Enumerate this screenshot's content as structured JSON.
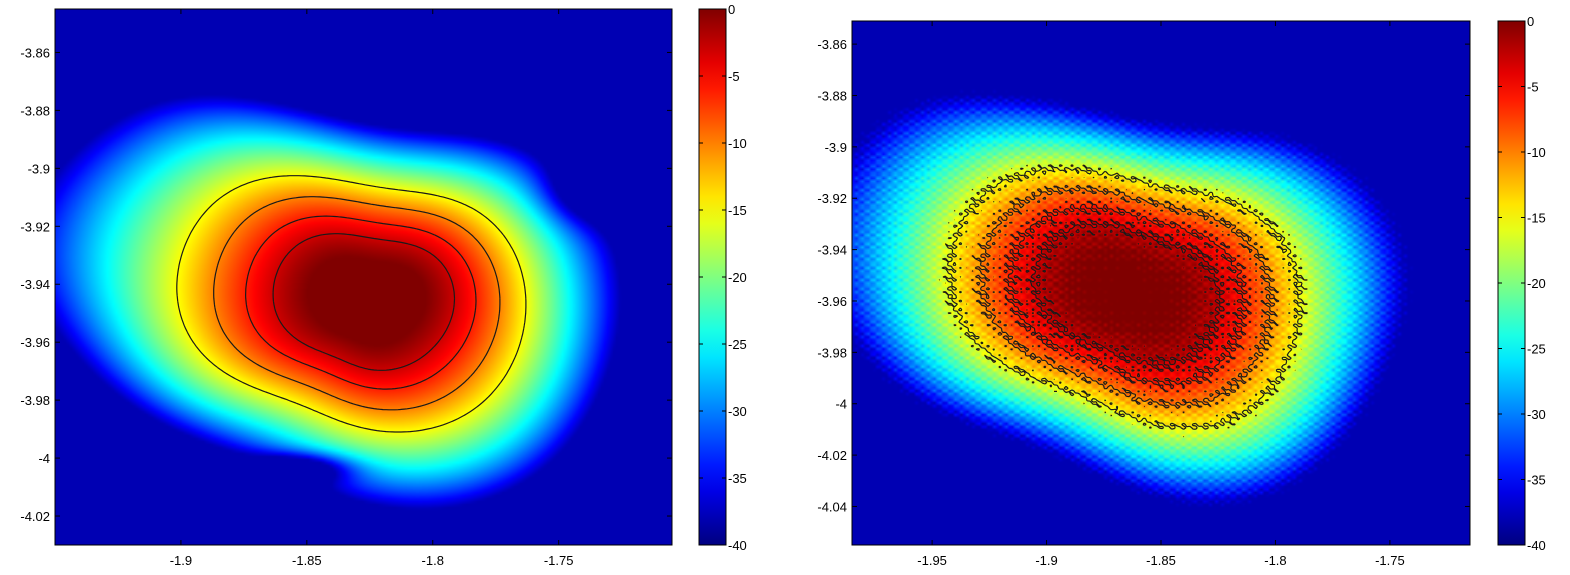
{
  "chart_data": [
    {
      "type": "heatmap",
      "contour_levels": [
        -3,
        -6,
        -10,
        -15
      ],
      "peak": {
        "x": -1.825,
        "y": -3.95
      },
      "xlim": [
        -1.95,
        -1.705
      ],
      "ylim": [
        -4.03,
        -3.845
      ],
      "xticks": [
        -1.9,
        -1.85,
        -1.8,
        -1.75
      ],
      "xtick_labels": [
        "-1.9",
        "-1.85",
        "-1.8",
        "-1.75"
      ],
      "yticks": [
        -3.86,
        -3.88,
        -3.9,
        -3.92,
        -3.94,
        -3.96,
        -3.98,
        -4,
        -4.02
      ],
      "ytick_labels": [
        "-3.86",
        "-3.88",
        "-3.9",
        "-3.92",
        "-3.94",
        "-3.96",
        "-3.98",
        "-4",
        "-4.02"
      ],
      "colorbar": {
        "range": [
          -40,
          0
        ],
        "ticks": [
          0,
          -5,
          -10,
          -15,
          -20,
          -25,
          -30,
          -35,
          -40
        ],
        "tick_labels": [
          "0",
          "-5",
          "-10",
          "-15",
          "-20",
          "-25",
          "-30",
          "-35",
          "-40"
        ],
        "colormap": "jet"
      },
      "smooth": true
    },
    {
      "type": "heatmap",
      "contour_levels": [
        -3,
        -6,
        -10,
        -15
      ],
      "peak": {
        "x": -1.855,
        "y": -3.962
      },
      "xlim": [
        -1.985,
        -1.715
      ],
      "ylim": [
        -4.055,
        -3.851
      ],
      "xticks": [
        -1.95,
        -1.9,
        -1.85,
        -1.8,
        -1.75
      ],
      "xtick_labels": [
        "-1.95",
        "-1.9",
        "-1.85",
        "-1.8",
        "-1.75"
      ],
      "yticks": [
        -3.86,
        -3.88,
        -3.9,
        -3.92,
        -3.94,
        -3.96,
        -3.98,
        -4,
        -4.02,
        -4.04
      ],
      "ytick_labels": [
        "-3.86",
        "-3.88",
        "-3.9",
        "-3.92",
        "-3.94",
        "-3.96",
        "-3.98",
        "-4",
        "-4.02",
        "-4.04"
      ],
      "colorbar": {
        "range": [
          -40,
          0
        ],
        "ticks": [
          0,
          -5,
          -10,
          -15,
          -20,
          -25,
          -30,
          -35,
          -40
        ],
        "tick_labels": [
          "0",
          "-5",
          "-10",
          "-15",
          "-20",
          "-25",
          "-30",
          "-35",
          "-40"
        ],
        "colormap": "jet"
      },
      "smooth": false
    }
  ]
}
